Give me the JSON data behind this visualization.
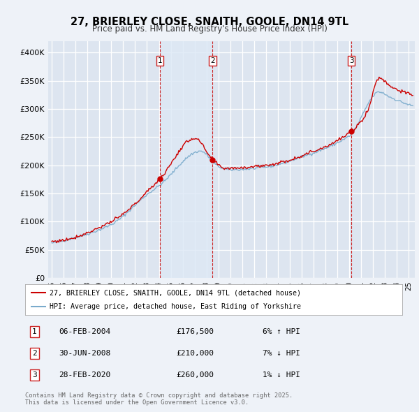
{
  "title": "27, BRIERLEY CLOSE, SNAITH, GOOLE, DN14 9TL",
  "subtitle": "Price paid vs. HM Land Registry's House Price Index (HPI)",
  "ylim": [
    0,
    420000
  ],
  "yticks": [
    0,
    50000,
    100000,
    150000,
    200000,
    250000,
    300000,
    350000,
    400000
  ],
  "ytick_labels": [
    "£0",
    "£50K",
    "£100K",
    "£150K",
    "£200K",
    "£250K",
    "£300K",
    "£350K",
    "£400K"
  ],
  "xlim_start": 1994.7,
  "xlim_end": 2025.5,
  "background_color": "#eef2f8",
  "plot_bg_color": "#dde5f0",
  "grid_color": "#ffffff",
  "red_line_color": "#cc0000",
  "blue_line_color": "#7aabcc",
  "sale_line_color": "#cc2222",
  "marker_color": "#cc0000",
  "sale_region_color": "#dde8f5",
  "sales": [
    {
      "num": 1,
      "date_decimal": 2004.09,
      "price": 176500,
      "date_str": "06-FEB-2004",
      "hpi_pct": "6% ↑ HPI"
    },
    {
      "num": 2,
      "date_decimal": 2008.5,
      "price": 210000,
      "date_str": "30-JUN-2008",
      "hpi_pct": "7% ↓ HPI"
    },
    {
      "num": 3,
      "date_decimal": 2020.16,
      "price": 260000,
      "date_str": "28-FEB-2020",
      "hpi_pct": "1% ↓ HPI"
    }
  ],
  "legend_line1": "27, BRIERLEY CLOSE, SNAITH, GOOLE, DN14 9TL (detached house)",
  "legend_line2": "HPI: Average price, detached house, East Riding of Yorkshire",
  "footer": "Contains HM Land Registry data © Crown copyright and database right 2025.\nThis data is licensed under the Open Government Licence v3.0."
}
